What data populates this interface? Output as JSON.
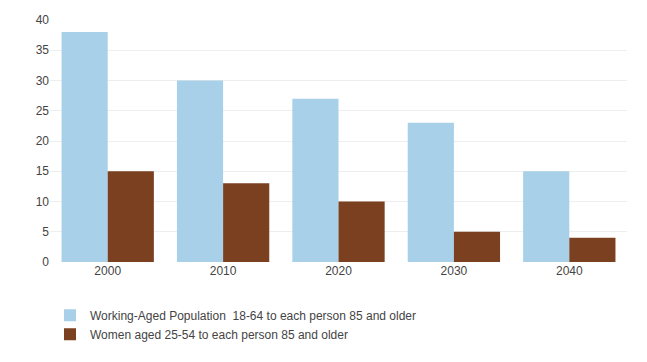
{
  "chart_data": {
    "type": "bar",
    "categories": [
      "2000",
      "2010",
      "2020",
      "2030",
      "2040"
    ],
    "series": [
      {
        "name": "Working-Aged Population  18-64 to each person 85 and older",
        "color": "#a8d0e8",
        "values": [
          38,
          30,
          27,
          23,
          15
        ]
      },
      {
        "name": "Women aged 25-54 to each person 85 and older",
        "color": "#7b4020",
        "values": [
          15,
          13,
          10,
          5,
          4
        ]
      }
    ],
    "ylim": [
      0,
      40
    ],
    "yticks": [
      0,
      5,
      10,
      15,
      20,
      25,
      30,
      35,
      40
    ],
    "grid": true,
    "legend": "bottom"
  }
}
